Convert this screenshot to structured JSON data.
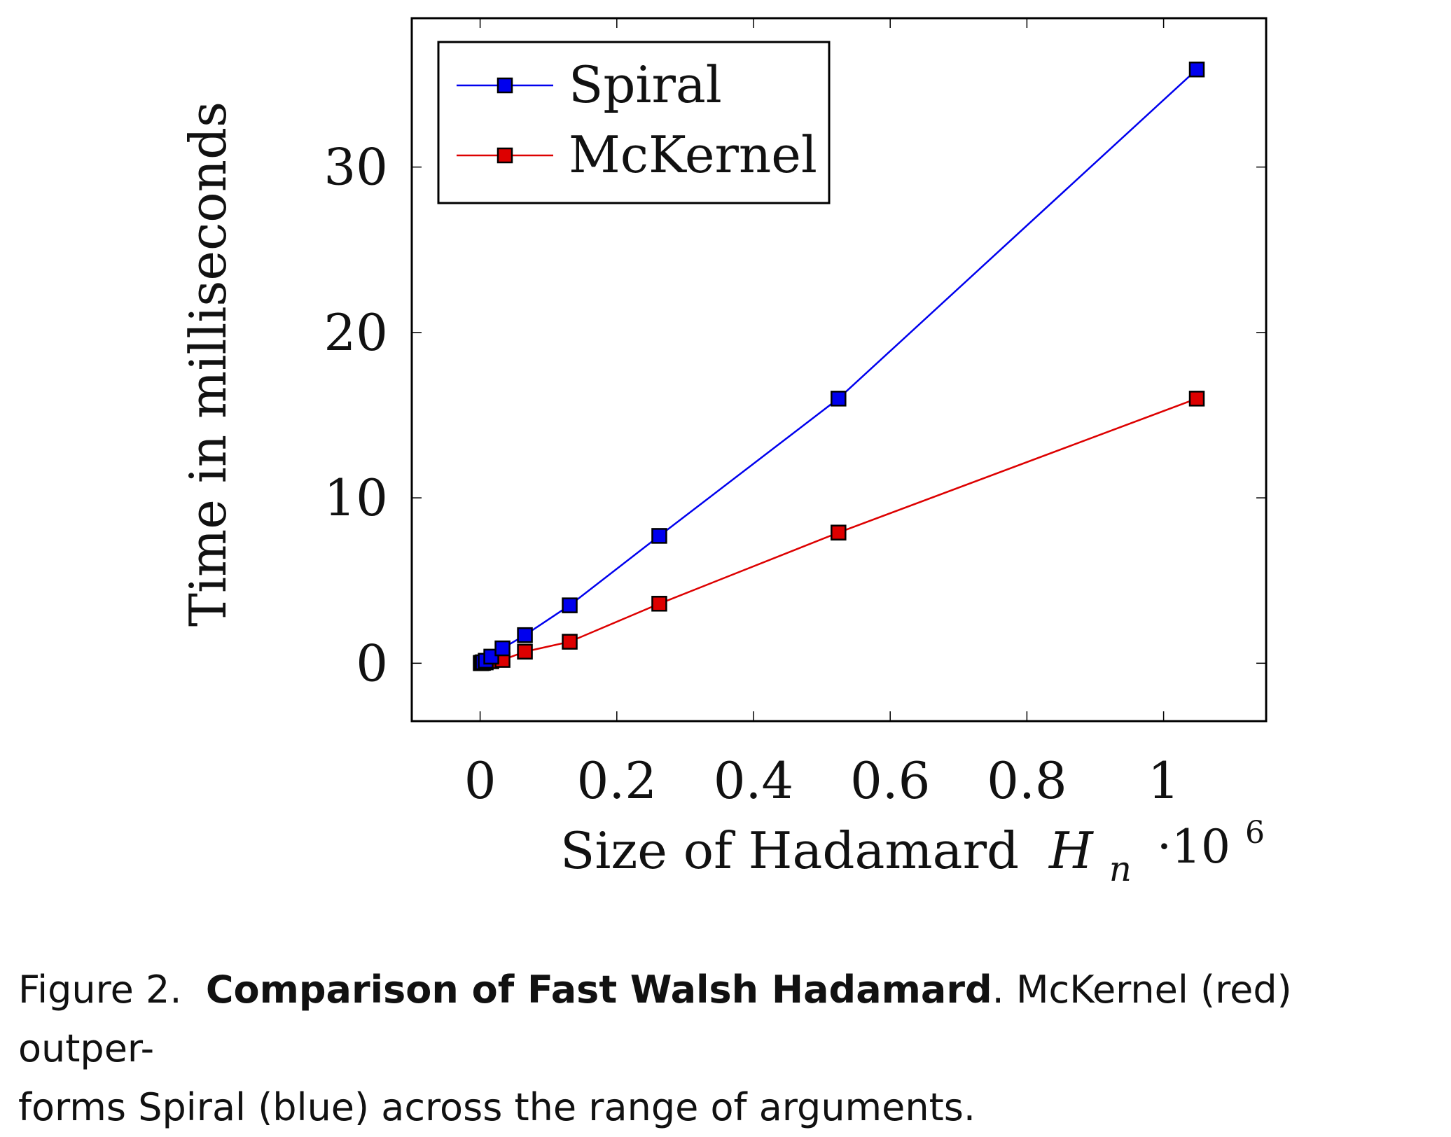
{
  "chart_data": {
    "type": "line",
    "x": [
      1024,
      2048,
      4096,
      8192,
      16384,
      32768,
      65536,
      131072,
      262144,
      524288,
      1048576
    ],
    "series": [
      {
        "name": "Spiral",
        "color": "#0000ee",
        "values": [
          0.01,
          0.03,
          0.06,
          0.15,
          0.4,
          0.9,
          1.7,
          3.5,
          7.7,
          16.0,
          35.9
        ]
      },
      {
        "name": "McKernel",
        "color": "#dd0000",
        "values": [
          0.01,
          0.01,
          0.02,
          0.05,
          0.12,
          0.2,
          0.7,
          1.3,
          3.6,
          7.9,
          16.0
        ]
      }
    ],
    "xlim": [
      -100000,
      1150000
    ],
    "ylim": [
      -3.5,
      39
    ],
    "xticks": [
      0,
      200000,
      400000,
      600000,
      800000,
      1000000
    ],
    "xtick_labels": [
      "0",
      "0.2",
      "0.4",
      "0.6",
      "0.8",
      "1"
    ],
    "yticks": [
      0,
      10,
      20,
      30
    ],
    "ytick_labels": [
      "0",
      "10",
      "20",
      "30"
    ],
    "xlabel": "Size of Hadamard",
    "xlabel_math": "H",
    "xlabel_sub": "n",
    "x_scale_base": "·10",
    "x_scale_exp": "6",
    "ylabel": "Time in milliseconds",
    "legend_position": "top-left",
    "grid": false
  },
  "caption": {
    "prefix": "Figure 2.",
    "bold": "Comparison of Fast Walsh Hadamard",
    "line1_rest": ". McKernel (red) outper-",
    "line2": "forms Spiral (blue) across the range of arguments."
  }
}
